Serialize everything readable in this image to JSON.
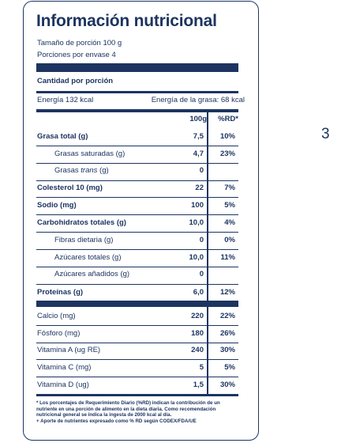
{
  "title": "Información nutricional",
  "serving_size": "Tamaño de porción 100 g",
  "servings_per_container": "Porciones por envase 4",
  "amount_per_serving": "Cantidad por porción",
  "energy": "Energía 132 kcal",
  "energy_fat": "Energía de la grasa: 68 kcal",
  "col_100g": "100g",
  "col_rd": "%RD*",
  "rows": [
    {
      "name": "Grasa total (g)",
      "value": "7,5",
      "pct": "10%",
      "bold": true,
      "indent": false
    },
    {
      "name": "Grasas saturadas (g)",
      "value": "4,7",
      "pct": "23%",
      "bold": false,
      "indent": true
    },
    {
      "name_pre": "Grasas ",
      "name_em": "trans",
      "name_post": " (g)",
      "value": "0",
      "pct": "",
      "bold": false,
      "indent": true
    },
    {
      "name": "Colesterol 10 (mg)",
      "value": "22",
      "pct": "7%",
      "bold": true,
      "indent": false
    },
    {
      "name": "Sodio (mg)",
      "value": "100",
      "pct": "5%",
      "bold": true,
      "indent": false
    },
    {
      "name": "Carbohidratos totales (g)",
      "value": "10,0",
      "pct": "4%",
      "bold": true,
      "indent": false
    },
    {
      "name": "Fibras dietaria (g)",
      "value": "0",
      "pct": "0%",
      "bold": false,
      "indent": true
    },
    {
      "name": "Azúcares totales (g)",
      "value": "10,0",
      "pct": "11%",
      "bold": false,
      "indent": true
    },
    {
      "name": "Azúcares añadidos  (g)",
      "value": "0",
      "pct": "",
      "bold": false,
      "indent": true
    },
    {
      "name": "Proteínas (g)",
      "value": "6,0",
      "pct": "12%",
      "bold": true,
      "indent": false
    }
  ],
  "minerals": [
    {
      "name": "Calcio (mg)",
      "value": "220",
      "pct": "22%"
    },
    {
      "name": "Fósforo (mg)",
      "value": "180",
      "pct": "26%"
    },
    {
      "name": "Vitamina A (ug RE)",
      "value": "240",
      "pct": "30%"
    },
    {
      "name": "Vitamina C (mg)",
      "value": "5",
      "pct": "5%"
    },
    {
      "name": "Vitamina D (ug)",
      "value": "1,5",
      "pct": "30%"
    }
  ],
  "footnote_1": "* Los porcentajes de Requerimiento Diario (%RD) indican la contribución de un nutriente en una porción de alimento en la dieta diaria. Como recomendación nutricional general se indica la ingesta de 2000 kcal al día.",
  "footnote_2": "+ Aporte de nutrientes expresado como % RD según CODEX/FDA/UE",
  "page_number": "3",
  "colors": {
    "primary": "#1d3461",
    "background": "#ffffff"
  }
}
